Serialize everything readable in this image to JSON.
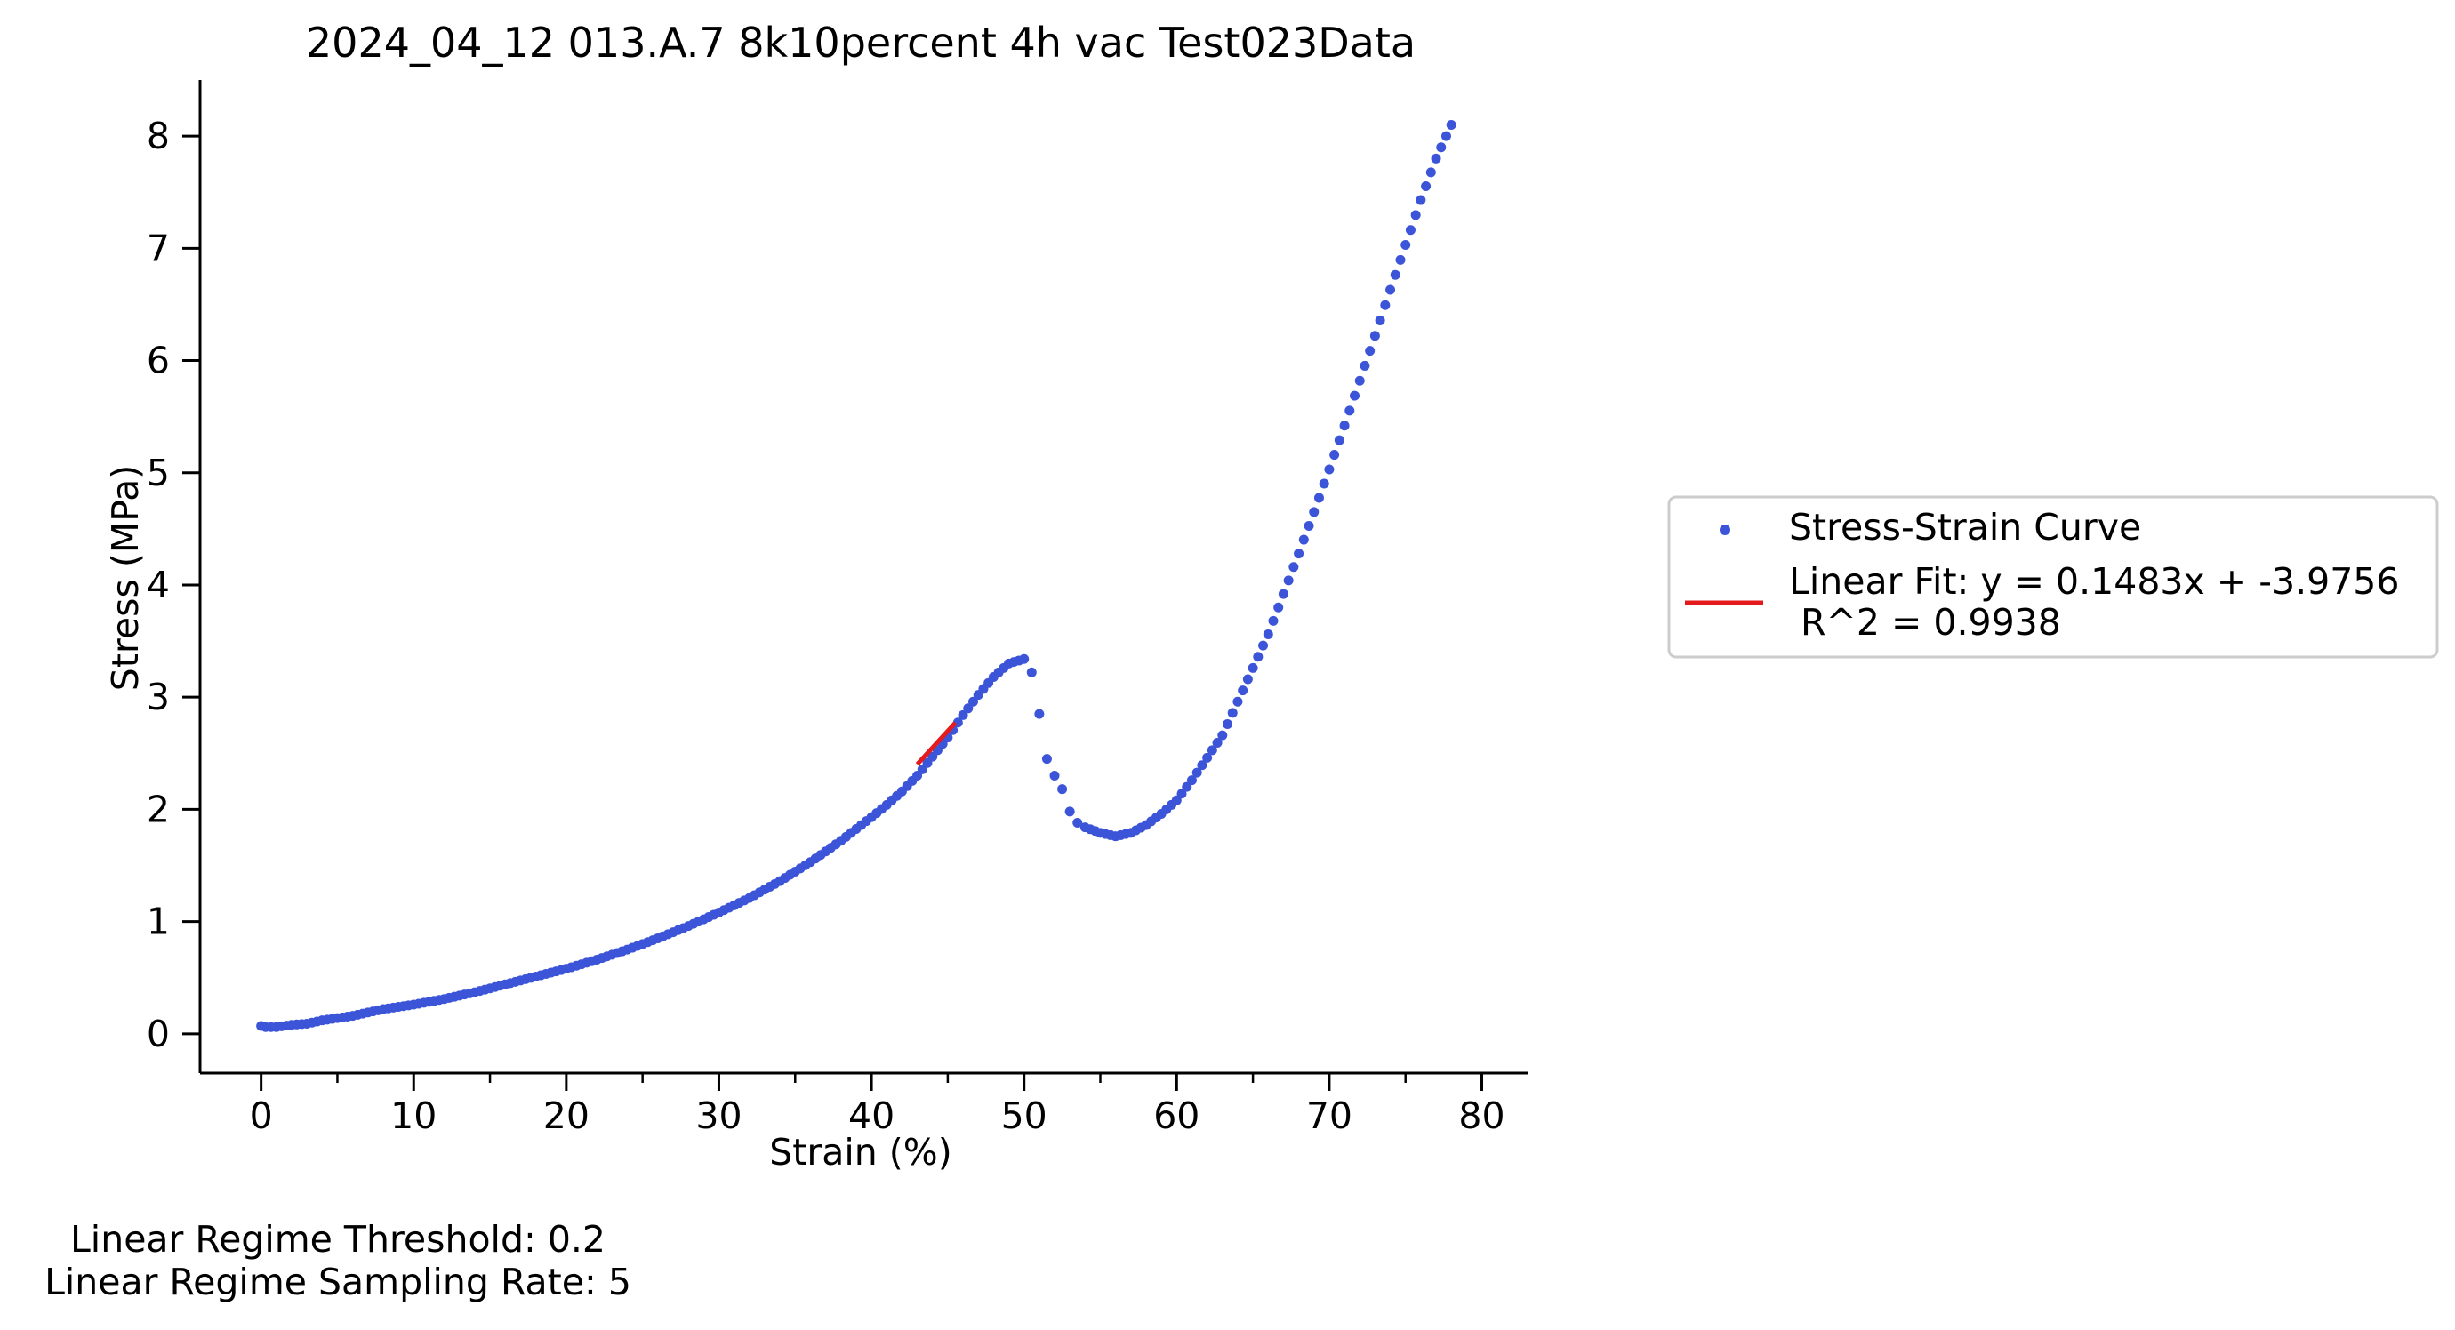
{
  "chart_data": {
    "type": "scatter",
    "title": "2024_04_12 013.A.7 8k10percent 4h vac Test023Data",
    "xlabel": "Strain (%)",
    "ylabel": "Stress (MPa)",
    "xlim": [
      -4,
      83
    ],
    "ylim": [
      -0.35,
      8.5
    ],
    "x_ticks": [
      0,
      10,
      20,
      30,
      40,
      50,
      60,
      70,
      80
    ],
    "x_minor_ticks": [
      5,
      15,
      25,
      35,
      45,
      55,
      65,
      75
    ],
    "y_ticks": [
      0,
      1,
      2,
      3,
      4,
      5,
      6,
      7,
      8
    ],
    "grid": false,
    "legend_position": "right, outside plot",
    "series": [
      {
        "name": "Stress-Strain Curve",
        "kind": "scatter",
        "color": "#3c55d8",
        "points": [
          [
            0,
            0.07
          ],
          [
            0.3,
            0.06
          ],
          [
            1,
            0.06
          ],
          [
            2,
            0.08
          ],
          [
            3,
            0.09
          ],
          [
            4,
            0.12
          ],
          [
            5,
            0.14
          ],
          [
            6,
            0.16
          ],
          [
            7,
            0.19
          ],
          [
            8,
            0.22
          ],
          [
            9,
            0.24
          ],
          [
            10,
            0.26
          ],
          [
            12,
            0.31
          ],
          [
            14,
            0.37
          ],
          [
            16,
            0.44
          ],
          [
            18,
            0.51
          ],
          [
            20,
            0.58
          ],
          [
            22,
            0.66
          ],
          [
            24,
            0.75
          ],
          [
            26,
            0.85
          ],
          [
            28,
            0.96
          ],
          [
            30,
            1.08
          ],
          [
            32,
            1.21
          ],
          [
            34,
            1.36
          ],
          [
            36,
            1.53
          ],
          [
            38,
            1.72
          ],
          [
            40,
            1.93
          ],
          [
            41,
            2.04
          ],
          [
            42,
            2.16
          ],
          [
            43,
            2.3
          ],
          [
            44,
            2.47
          ],
          [
            45,
            2.64
          ],
          [
            46,
            2.84
          ],
          [
            47,
            3.02
          ],
          [
            48,
            3.18
          ],
          [
            49,
            3.3
          ],
          [
            50,
            3.34
          ],
          [
            50.5,
            3.22
          ],
          [
            51,
            2.85
          ],
          [
            51.5,
            2.45
          ],
          [
            52,
            2.3
          ],
          [
            52.5,
            2.18
          ],
          [
            53,
            1.98
          ],
          [
            53.5,
            1.88
          ],
          [
            54,
            1.84
          ],
          [
            55,
            1.79
          ],
          [
            56,
            1.76
          ],
          [
            57,
            1.79
          ],
          [
            58,
            1.86
          ],
          [
            59,
            1.96
          ],
          [
            60,
            2.08
          ],
          [
            61,
            2.26
          ],
          [
            62,
            2.46
          ],
          [
            63,
            2.66
          ],
          [
            64,
            2.96
          ],
          [
            65,
            3.26
          ],
          [
            66,
            3.56
          ],
          [
            67,
            3.92
          ],
          [
            68,
            4.28
          ],
          [
            69,
            4.65
          ],
          [
            70,
            5.03
          ],
          [
            71,
            5.42
          ],
          [
            72,
            5.82
          ],
          [
            73,
            6.22
          ],
          [
            74,
            6.63
          ],
          [
            75,
            7.03
          ],
          [
            76,
            7.43
          ],
          [
            77,
            7.8
          ],
          [
            78,
            8.1
          ]
        ]
      },
      {
        "name": "Linear Fit: y = 0.1483x + -3.9756\n R^2 = 0.9938",
        "kind": "line",
        "color": "#e41a1c",
        "x_range": [
          43,
          45.5
        ]
      }
    ]
  },
  "notes": {
    "threshold": "Linear Regime Threshold: 0.2",
    "sampling_rate": "Linear Regime Sampling Rate: 5"
  }
}
